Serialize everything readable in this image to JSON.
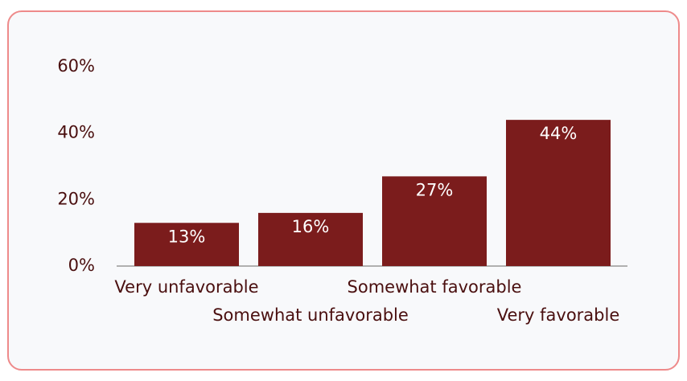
{
  "chart_data": {
    "type": "bar",
    "categories": [
      "Very unfavorable",
      "Somewhat unfavorable",
      "Somewhat favorable",
      "Very favorable"
    ],
    "values": [
      13,
      16,
      27,
      44
    ],
    "value_labels": [
      "13%",
      "16%",
      "27%",
      "44%"
    ],
    "color": "#7b1c1c",
    "ylim": [
      0,
      60
    ],
    "yticks": [
      {
        "value": 0,
        "label": "0%"
      },
      {
        "value": 20,
        "label": "20%"
      },
      {
        "value": 40,
        "label": "40%"
      },
      {
        "value": 60,
        "label": "60%"
      }
    ],
    "grid": false
  }
}
